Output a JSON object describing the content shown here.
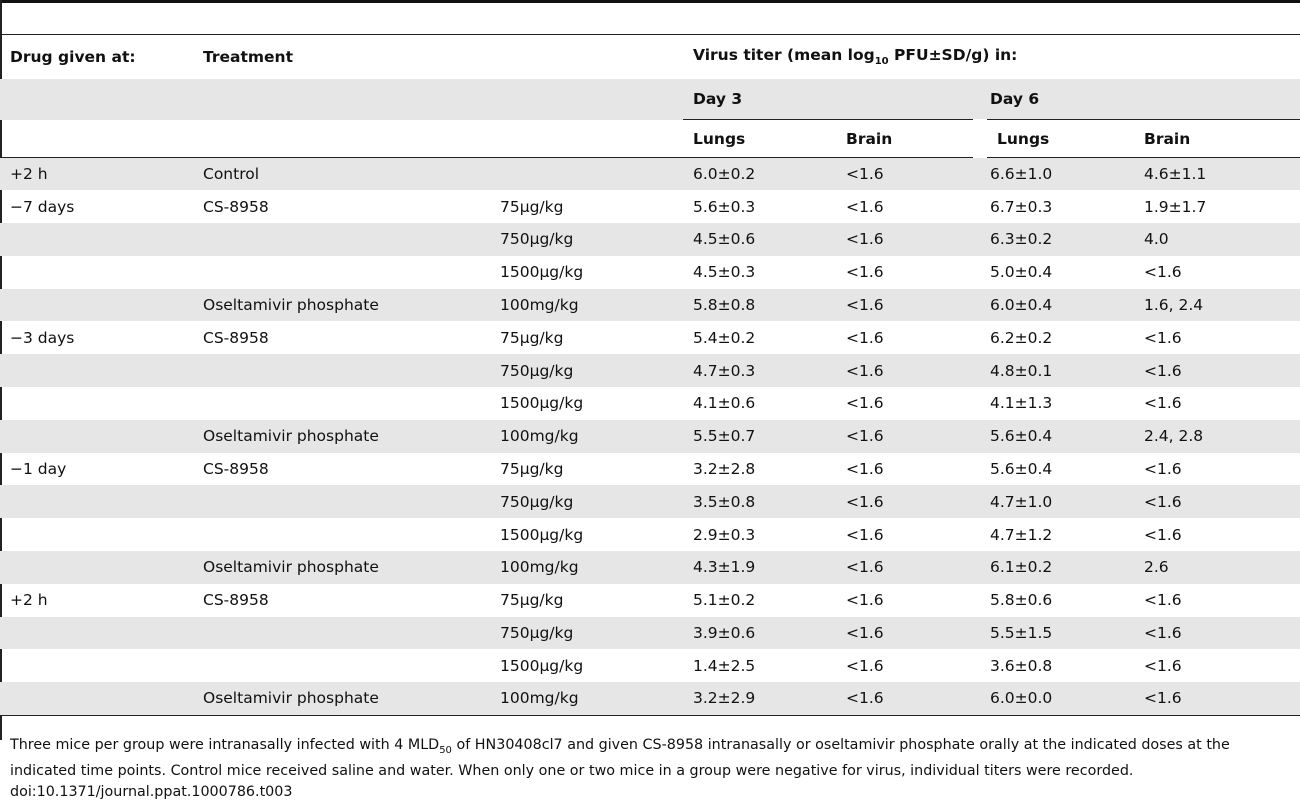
{
  "headers": {
    "drug_given_at": "Drug given at:",
    "treatment": "Treatment",
    "virus_titer_prefix": "Virus titer (mean log",
    "virus_titer_sub": "10",
    "virus_titer_suffix": " PFU±SD/g) in:",
    "day3": "Day 3",
    "day6": "Day 6",
    "lungs": "Lungs",
    "brain": "Brain"
  },
  "rows": [
    {
      "time": "+2 h",
      "treatment": "Control",
      "dose": "",
      "d3_lungs": "6.0±0.2",
      "d3_brain": "<1.6",
      "d6_lungs": "6.6±1.0",
      "d6_brain": "4.6±1.1"
    },
    {
      "time": "−7 days",
      "treatment": "CS-8958",
      "dose": "75μg/kg",
      "d3_lungs": "5.6±0.3",
      "d3_brain": "<1.6",
      "d6_lungs": "6.7±0.3",
      "d6_brain": "1.9±1.7"
    },
    {
      "time": "",
      "treatment": "",
      "dose": "750μg/kg",
      "d3_lungs": "4.5±0.6",
      "d3_brain": "<1.6",
      "d6_lungs": "6.3±0.2",
      "d6_brain": "4.0"
    },
    {
      "time": "",
      "treatment": "",
      "dose": "1500μg/kg",
      "d3_lungs": "4.5±0.3",
      "d3_brain": "<1.6",
      "d6_lungs": "5.0±0.4",
      "d6_brain": "<1.6"
    },
    {
      "time": "",
      "treatment": "Oseltamivir phosphate",
      "dose": "100mg/kg",
      "d3_lungs": "5.8±0.8",
      "d3_brain": "<1.6",
      "d6_lungs": "6.0±0.4",
      "d6_brain": "1.6, 2.4"
    },
    {
      "time": "−3 days",
      "treatment": "CS-8958",
      "dose": "75μg/kg",
      "d3_lungs": "5.4±0.2",
      "d3_brain": "<1.6",
      "d6_lungs": "6.2±0.2",
      "d6_brain": "<1.6"
    },
    {
      "time": "",
      "treatment": "",
      "dose": "750μg/kg",
      "d3_lungs": "4.7±0.3",
      "d3_brain": "<1.6",
      "d6_lungs": "4.8±0.1",
      "d6_brain": "<1.6"
    },
    {
      "time": "",
      "treatment": "",
      "dose": "1500μg/kg",
      "d3_lungs": "4.1±0.6",
      "d3_brain": "<1.6",
      "d6_lungs": "4.1±1.3",
      "d6_brain": "<1.6"
    },
    {
      "time": "",
      "treatment": "Oseltamivir phosphate",
      "dose": "100mg/kg",
      "d3_lungs": "5.5±0.7",
      "d3_brain": "<1.6",
      "d6_lungs": "5.6±0.4",
      "d6_brain": "2.4, 2.8"
    },
    {
      "time": "−1 day",
      "treatment": "CS-8958",
      "dose": "75μg/kg",
      "d3_lungs": "3.2±2.8",
      "d3_brain": "<1.6",
      "d6_lungs": "5.6±0.4",
      "d6_brain": "<1.6"
    },
    {
      "time": "",
      "treatment": "",
      "dose": "750μg/kg",
      "d3_lungs": "3.5±0.8",
      "d3_brain": "<1.6",
      "d6_lungs": "4.7±1.0",
      "d6_brain": "<1.6"
    },
    {
      "time": "",
      "treatment": "",
      "dose": "1500μg/kg",
      "d3_lungs": "2.9±0.3",
      "d3_brain": "<1.6",
      "d6_lungs": "4.7±1.2",
      "d6_brain": "<1.6"
    },
    {
      "time": "",
      "treatment": "Oseltamivir phosphate",
      "dose": "100mg/kg",
      "d3_lungs": "4.3±1.9",
      "d3_brain": "<1.6",
      "d6_lungs": "6.1±0.2",
      "d6_brain": "2.6"
    },
    {
      "time": "+2 h",
      "treatment": "CS-8958",
      "dose": "75μg/kg",
      "d3_lungs": "5.1±0.2",
      "d3_brain": "<1.6",
      "d6_lungs": "5.8±0.6",
      "d6_brain": "<1.6"
    },
    {
      "time": "",
      "treatment": "",
      "dose": "750μg/kg",
      "d3_lungs": "3.9±0.6",
      "d3_brain": "<1.6",
      "d6_lungs": "5.5±1.5",
      "d6_brain": "<1.6"
    },
    {
      "time": "",
      "treatment": "",
      "dose": "1500μg/kg",
      "d3_lungs": "1.4±2.5",
      "d3_brain": "<1.6",
      "d6_lungs": "3.6±0.8",
      "d6_brain": "<1.6"
    },
    {
      "time": "",
      "treatment": "Oseltamivir phosphate",
      "dose": "100mg/kg",
      "d3_lungs": "3.2±2.9",
      "d3_brain": "<1.6",
      "d6_lungs": "6.0±0.0",
      "d6_brain": "<1.6"
    }
  ],
  "caption": {
    "part1": "Three mice per group were intranasally infected with 4 MLD",
    "part1_sub": "50",
    "part2": " of HN30408cl7 and given CS-8958 intranasally or oseltamivir phosphate orally at the indicated doses at the indicated time points. Control mice received saline and water. When only one or two mice in a group were negative for virus, individual titers were recorded.",
    "doi": "doi:10.1371/journal.ppat.1000786.t003"
  }
}
